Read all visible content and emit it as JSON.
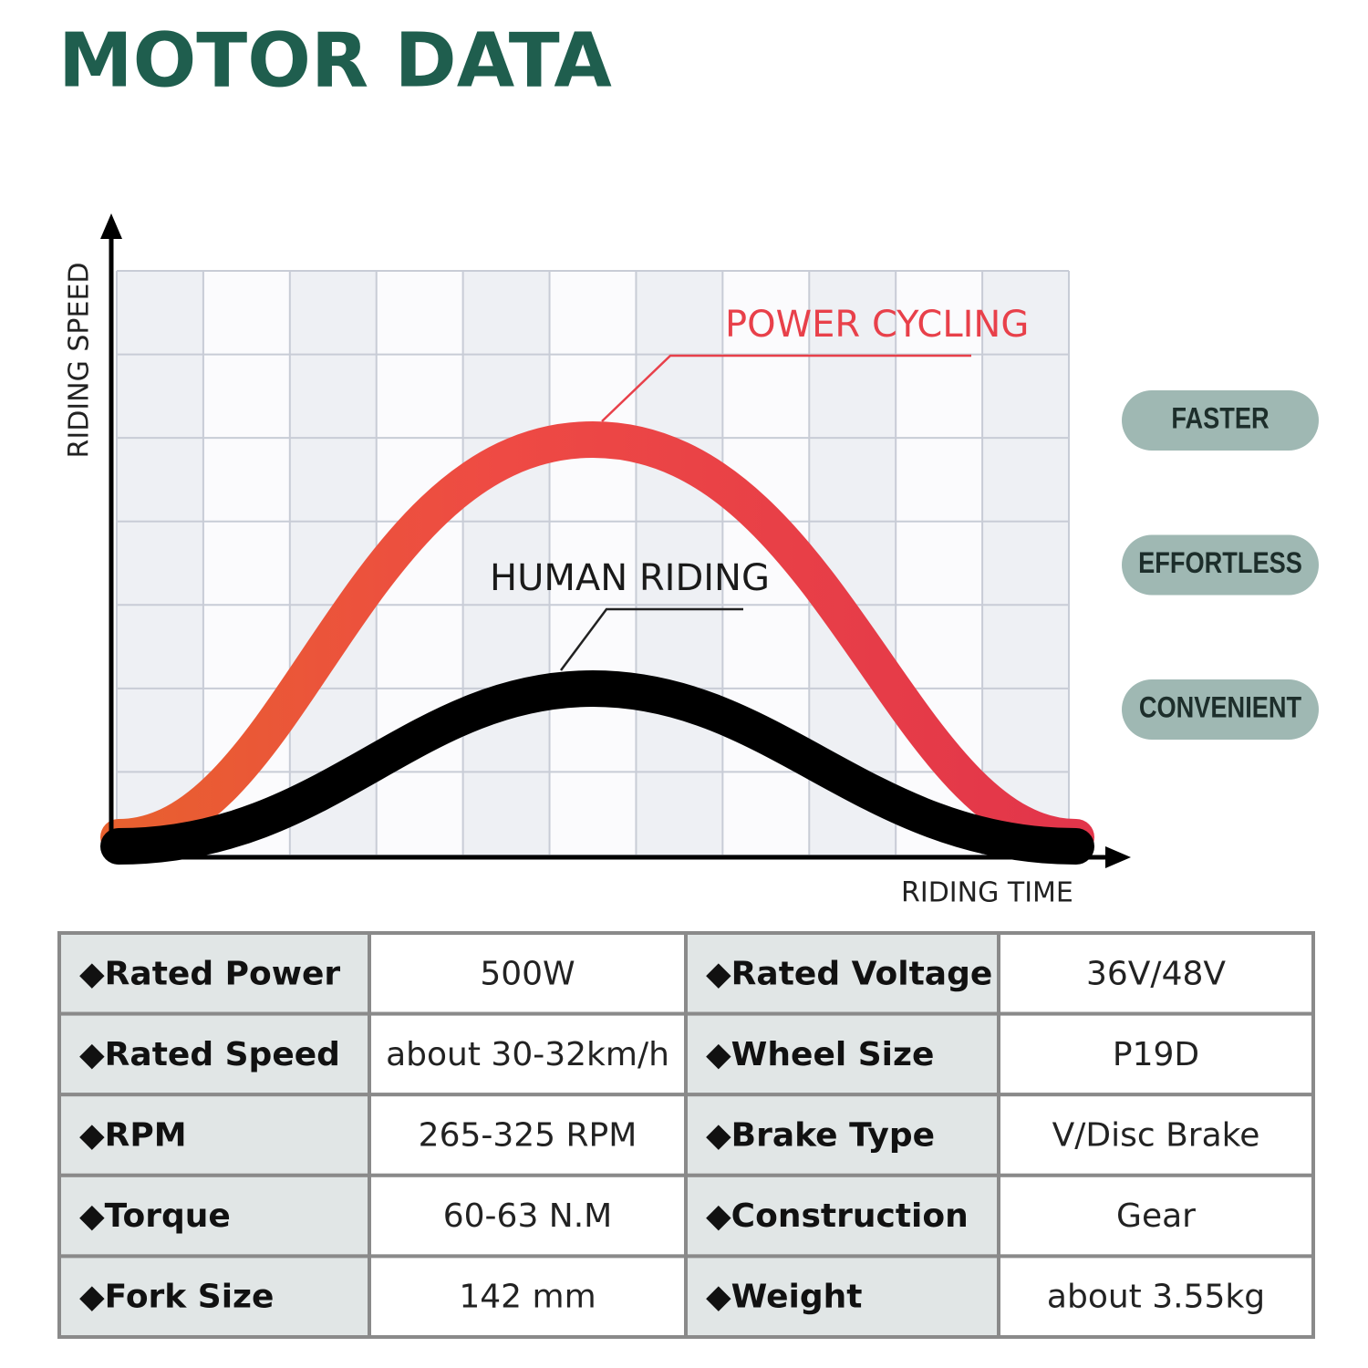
{
  "header": {
    "title": "MOTOR DATA"
  },
  "diagram": {
    "y_axis_label": "RIDING SPEED",
    "x_axis_label": "RIDING TIME",
    "curves": [
      {
        "label": "POWER CYCLING"
      },
      {
        "label": "HUMAN RIDING"
      }
    ]
  },
  "badges": [
    "FASTER",
    "EFFORTLESS",
    "CONVENIENT"
  ],
  "table": {
    "rows": [
      [
        "◆Rated Power",
        "500W",
        "◆Rated Voltage",
        "36V/48V"
      ],
      [
        "◆Rated Speed",
        "about 30-32km/h",
        "◆Wheel Size",
        "P19D"
      ],
      [
        "◆RPM",
        "265-325 RPM",
        "◆Brake Type",
        "V/Disc Brake"
      ],
      [
        "◆Torque",
        "60-63 N.M",
        "◆Construction",
        "Gear"
      ],
      [
        "◆Fork Size",
        "142 mm",
        "◆Weight",
        "about 3.55kg"
      ]
    ]
  }
}
